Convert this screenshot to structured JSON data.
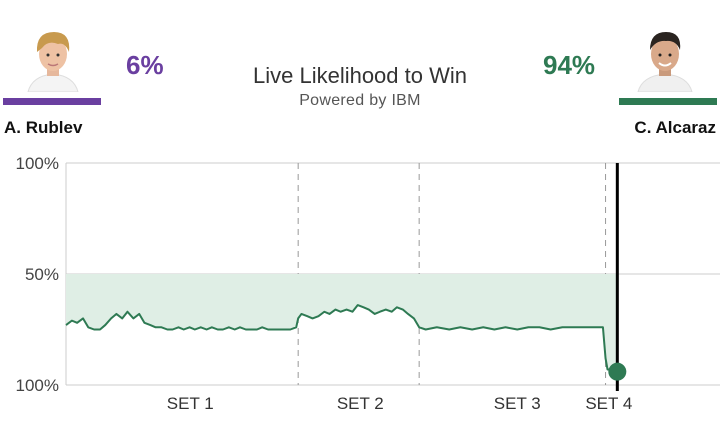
{
  "players": {
    "left": {
      "name": "A. Rublev",
      "pct": "6%",
      "color": "#6a3fa0"
    },
    "right": {
      "name": "C. Alcaraz",
      "pct": "94%",
      "color": "#2e7a53"
    }
  },
  "header": {
    "title": "Live Likelihood to Win",
    "subtitle": "Powered by IBM"
  },
  "chart_data": {
    "type": "area",
    "y_tick_labels": [
      "100%",
      "50%",
      "100%"
    ],
    "baseline": 50,
    "x_range": [
      0,
      100
    ],
    "ylim": [
      0,
      100
    ],
    "set_labels": [
      "SET 1",
      "SET 2",
      "SET 3",
      "SET 4"
    ],
    "set_label_positions": [
      19,
      45,
      69,
      83
    ],
    "set_boundaries": [
      35.5,
      54,
      82.5
    ],
    "current_position": 84.3,
    "grid": true,
    "series": [
      {
        "x": [
          0,
          0.9,
          1.7,
          2.6,
          3.4,
          4.3,
          5.2,
          6.0,
          6.9,
          7.7,
          8.6,
          9.4,
          10.3,
          11.2,
          12.0,
          12.9,
          13.7,
          14.6,
          15.5,
          16.3,
          17.2,
          18.0,
          18.9,
          19.7,
          20.6,
          21.5,
          22.3,
          23.2,
          24.0,
          24.9,
          25.8,
          26.6,
          27.5,
          28.3,
          29.2,
          30.0,
          30.9,
          31.8,
          32.6,
          33.5,
          34.3,
          35.2,
          35.5,
          36.0,
          36.9,
          37.7,
          38.6,
          39.5,
          40.3,
          41.2,
          42.0,
          42.9,
          43.8,
          44.6,
          45.5,
          46.3,
          47.2,
          48.0,
          48.9,
          49.8,
          50.6,
          51.5,
          52.3,
          53.2,
          54.0,
          55.0,
          56.7,
          58.6,
          60.3,
          62.1,
          63.8,
          65.5,
          67.2,
          69.0,
          70.7,
          72.4,
          74.1,
          75.9,
          77.6,
          79.3,
          81.0,
          82.1,
          82.5,
          82.8,
          83.2,
          84.3
        ],
        "y": [
          27,
          29,
          28,
          30,
          26,
          25,
          25,
          27,
          30,
          32,
          30,
          33,
          30,
          32,
          28,
          27,
          26,
          26,
          25,
          25,
          26,
          25,
          26,
          25,
          26,
          25,
          26,
          25,
          25,
          26,
          25,
          26,
          25,
          25,
          25,
          26,
          25,
          25,
          25,
          25,
          25,
          26,
          30,
          32,
          31,
          30,
          31,
          33,
          32,
          34,
          33,
          34,
          33,
          36,
          35,
          34,
          32,
          33,
          34,
          33,
          35,
          34,
          32,
          30,
          26,
          25,
          26,
          25,
          26,
          25,
          26,
          25,
          26,
          25,
          26,
          26,
          25,
          26,
          26,
          26,
          26,
          26,
          12,
          7,
          7,
          6
        ]
      }
    ]
  }
}
